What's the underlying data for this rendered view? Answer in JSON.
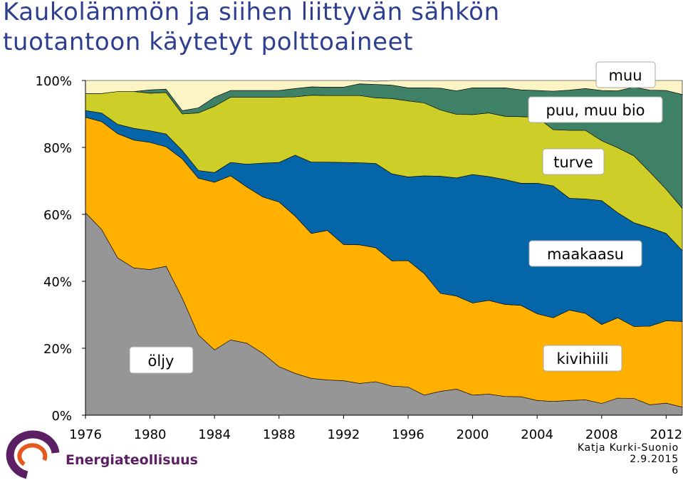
{
  "title": {
    "line1": "Kaukolämmön ja siihen liittyvän sähkön",
    "line2": "tuotantoon käytetyt polttoaineet"
  },
  "chart_data": {
    "type": "area",
    "stacked": true,
    "x": [
      1976,
      1977,
      1978,
      1979,
      1980,
      1981,
      1982,
      1983,
      1984,
      1985,
      1986,
      1987,
      1988,
      1989,
      1990,
      1991,
      1992,
      1993,
      1994,
      1995,
      1996,
      1997,
      1998,
      1999,
      2000,
      2001,
      2002,
      2003,
      2004,
      2005,
      2006,
      2007,
      2008,
      2009,
      2010,
      2011,
      2012,
      2013
    ],
    "xticks": [
      "1976",
      "1980",
      "1984",
      "1988",
      "1992",
      "1996",
      "2000",
      "2004",
      "2008",
      "2012"
    ],
    "yticks": [
      "0%",
      "20%",
      "40%",
      "60%",
      "80%",
      "100%"
    ],
    "ylim": [
      0,
      100
    ],
    "series": [
      {
        "name": "öljy",
        "color": "#969696",
        "values": [
          60.5,
          55.5,
          47,
          44,
          43.5,
          44.5,
          35,
          24,
          19.5,
          22.5,
          21.5,
          18.5,
          14.5,
          12.5,
          11,
          10.5,
          10.3,
          9.5,
          10,
          8.7,
          8.4,
          6,
          7.1,
          7.8,
          6,
          6.3,
          5.6,
          5.5,
          4.4,
          4.1,
          4.4,
          4.6,
          3.5,
          5.1,
          5,
          3.1,
          3.6,
          2.4
        ]
      },
      {
        "name": "kivihiili",
        "color": "#ffb000",
        "values": [
          28.5,
          32.2,
          37.1,
          38.2,
          38,
          35.7,
          41.6,
          46.8,
          50.1,
          49,
          46.7,
          46.7,
          49.2,
          47,
          43.3,
          44.7,
          40.7,
          41.4,
          40,
          37.4,
          37.8,
          36.3,
          29.3,
          27.8,
          27.5,
          28,
          27.5,
          27.3,
          25.9,
          25,
          27,
          25.8,
          23.6,
          24,
          21.5,
          23.5,
          24.6,
          25.6
        ]
      },
      {
        "name": "maakaasu",
        "color": "#0465a9",
        "values": [
          2,
          2.6,
          2.8,
          3.5,
          3.5,
          3.8,
          2.5,
          2.3,
          2.9,
          4,
          6.8,
          10.1,
          11.8,
          18.2,
          21.3,
          20.4,
          24.5,
          24.5,
          25.2,
          26,
          25,
          29.2,
          35,
          35.3,
          38.4,
          37,
          37.3,
          36.5,
          39,
          39.4,
          33.4,
          34.2,
          37,
          31.4,
          31,
          29.4,
          26.1,
          21.2
        ]
      },
      {
        "name": "turve",
        "color": "#cece28",
        "values": [
          5.1,
          5.8,
          9.8,
          11,
          11.2,
          12.4,
          10.9,
          17.2,
          19.8,
          19.5,
          20,
          19.7,
          19.5,
          17.4,
          20,
          19.9,
          20,
          20.1,
          19.6,
          22.5,
          22.7,
          21.8,
          19.8,
          19,
          17.9,
          19,
          18.9,
          19.9,
          19.7,
          16.8,
          20.3,
          20.5,
          17.9,
          19.4,
          20,
          16.6,
          13.2,
          12.6
        ]
      },
      {
        "name": "puu, muu bio",
        "color": "#3f8166",
        "values": [
          0,
          0,
          0,
          0,
          1,
          1,
          1,
          1.5,
          2.7,
          2,
          2,
          2,
          2,
          2.5,
          2.5,
          2.5,
          2.5,
          3.5,
          4,
          4,
          3.9,
          4.5,
          6.5,
          7,
          8,
          7.5,
          8.5,
          8,
          8,
          11.5,
          12,
          12.5,
          15,
          17,
          20.5,
          24.5,
          29.5,
          34
        ]
      },
      {
        "name": "muu",
        "color": "#fcf4c4",
        "values": [
          3.9,
          3.9,
          3.3,
          3.3,
          2.8,
          2.6,
          9,
          8.2,
          5,
          3,
          3,
          3,
          3,
          2.4,
          1.9,
          2,
          2,
          1,
          1,
          1.4,
          2.2,
          2.2,
          2.3,
          3.1,
          2.2,
          2.2,
          2.2,
          2.8,
          3,
          3.2,
          2.9,
          2.4,
          3,
          3.1,
          2,
          2.9,
          3,
          4.2
        ]
      }
    ],
    "labels": {
      "muu": "muu",
      "puu": "puu, muu bio",
      "turve": "turve",
      "maakaasu": "maakaasu",
      "oljy": "öljy",
      "kivihiili": "kivihiili"
    }
  },
  "logo": {
    "text": "Energiateollisuus",
    "colors": [
      "#5c1f63",
      "#e45a1e"
    ]
  },
  "footer": {
    "author": "Katja Kurki-Suonio",
    "date": "2.9.2015",
    "page": "6"
  }
}
